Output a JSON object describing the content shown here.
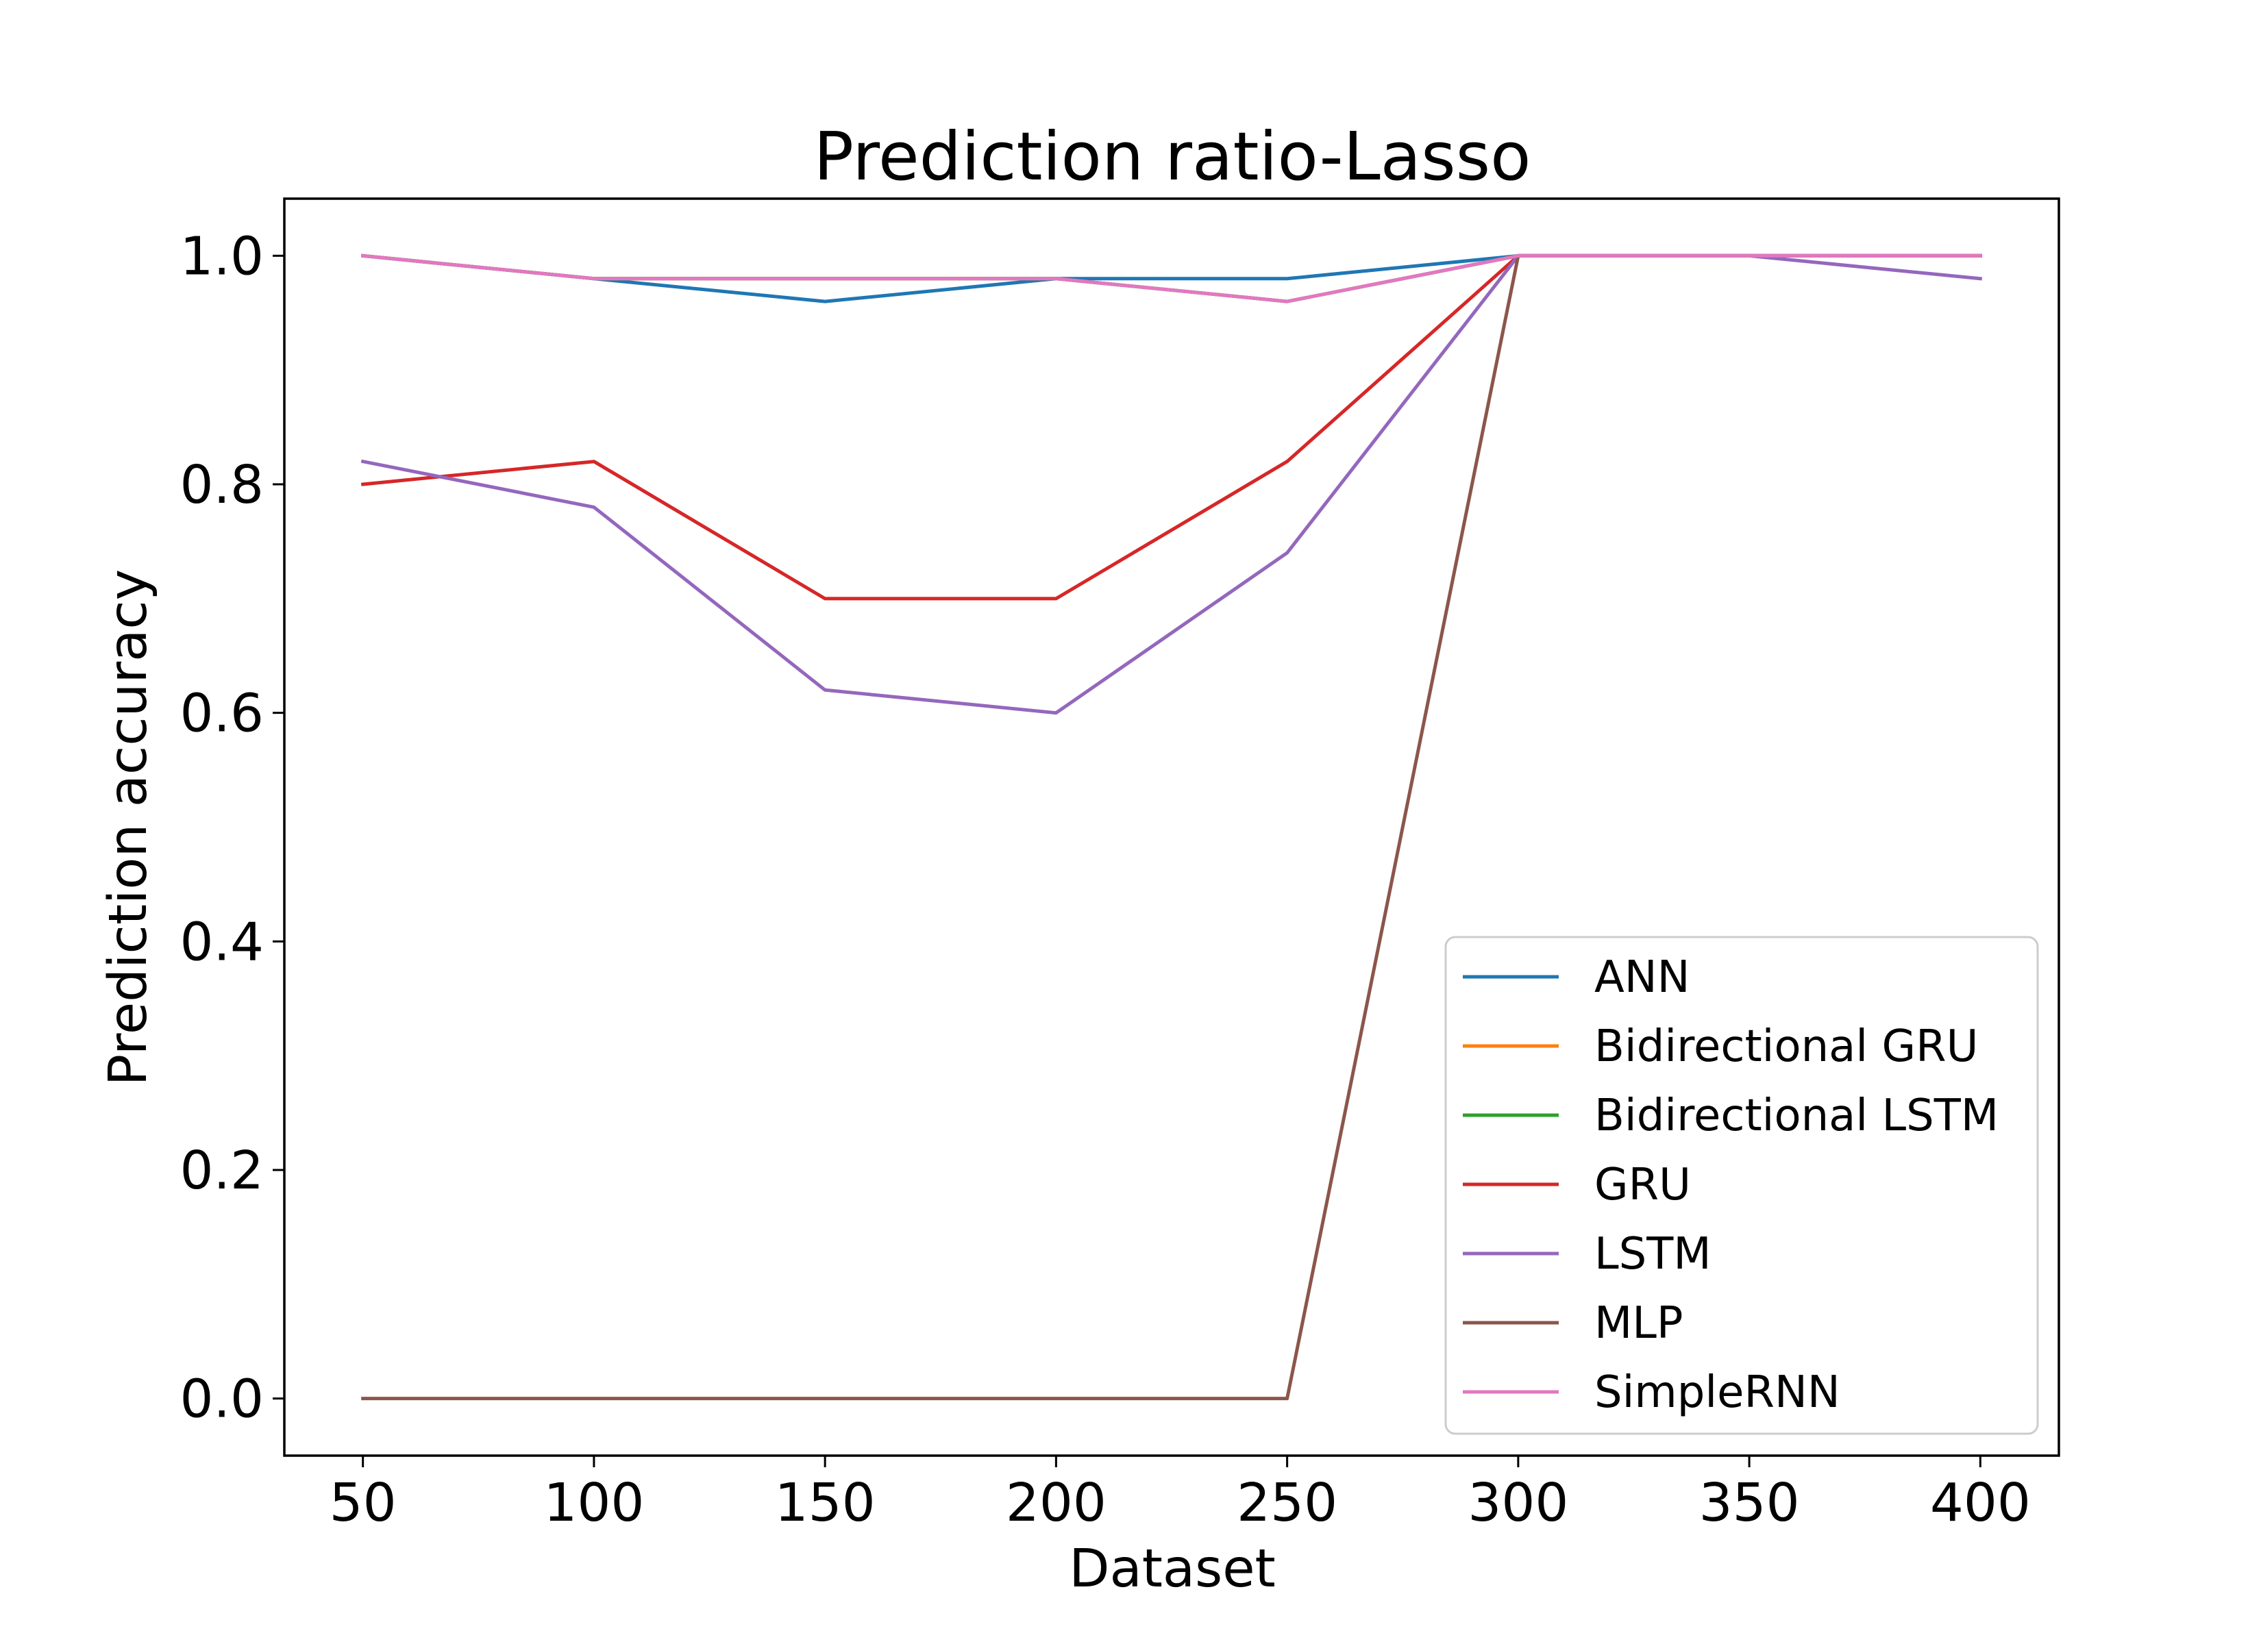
{
  "chart_data": {
    "type": "line",
    "title": "Prediction ratio-Lasso",
    "xlabel": "Dataset",
    "ylabel": "Prediction accuracy",
    "x": [
      50,
      100,
      150,
      200,
      250,
      300,
      350,
      400
    ],
    "xlim": [
      33,
      417
    ],
    "ylim": [
      -0.05,
      1.05
    ],
    "xticks": [
      "50",
      "100",
      "150",
      "200",
      "250",
      "300",
      "350",
      "400"
    ],
    "yticks": [
      "0.0",
      "0.2",
      "0.4",
      "0.6",
      "0.8",
      "1.0"
    ],
    "grid": false,
    "legend_position": "lower-right",
    "series": [
      {
        "name": "ANN",
        "color": "#1f77b4",
        "values": [
          1.0,
          0.98,
          0.96,
          0.98,
          0.98,
          1.0,
          1.0,
          1.0
        ]
      },
      {
        "name": "Bidirectional GRU",
        "color": "#ff7f0e",
        "values": [
          1.0,
          0.98,
          0.98,
          0.98,
          0.96,
          1.0,
          1.0,
          1.0
        ]
      },
      {
        "name": "Bidirectional LSTM",
        "color": "#2ca02c",
        "values": [
          1.0,
          0.98,
          0.98,
          0.98,
          0.96,
          1.0,
          1.0,
          1.0
        ]
      },
      {
        "name": "GRU",
        "color": "#d62728",
        "values": [
          0.8,
          0.82,
          0.7,
          0.7,
          0.82,
          1.0,
          1.0,
          1.0
        ]
      },
      {
        "name": "LSTM",
        "color": "#9467bd",
        "values": [
          0.82,
          0.78,
          0.62,
          0.6,
          0.74,
          1.0,
          1.0,
          0.98
        ]
      },
      {
        "name": "MLP",
        "color": "#8c564b",
        "values": [
          0.0,
          0.0,
          0.0,
          0.0,
          0.0,
          1.0,
          1.0,
          1.0
        ]
      },
      {
        "name": "SimpleRNN",
        "color": "#e377c2",
        "values": [
          1.0,
          0.98,
          0.98,
          0.98,
          0.96,
          1.0,
          1.0,
          1.0
        ]
      }
    ]
  }
}
